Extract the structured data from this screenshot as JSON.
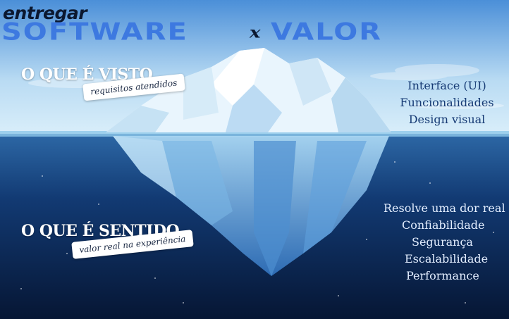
{
  "header": {
    "prefix": "entregar",
    "word_left": "SOFTWARE",
    "separator": "x",
    "word_right": "VALOR"
  },
  "above": {
    "title": "O QUE É VISTO",
    "tag": "requisitos atendidos",
    "items": [
      "Interface (UI)",
      "Funcionalidades",
      "Design visual"
    ]
  },
  "below": {
    "title": "O QUE É SENTIDO",
    "tag": "valor real na experiência",
    "items": [
      "Resolve uma dor real",
      "Confiabilidade",
      "Segurança",
      "Escalabilidade",
      "Performance"
    ]
  },
  "colors": {
    "headline": "#3d79e0",
    "sky_top": "#4b8fd8",
    "sea_deep": "#071a3b"
  }
}
